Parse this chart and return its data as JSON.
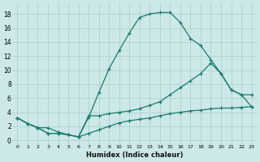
{
  "xlabel": "Humidex (Indice chaleur)",
  "bg_color": "#cce8e8",
  "grid_color": "#aacccc",
  "line_color": "#1a7a6e",
  "xlim": [
    -0.5,
    23.5
  ],
  "ylim": [
    -0.5,
    19.5
  ],
  "xticks": [
    0,
    1,
    2,
    3,
    4,
    5,
    6,
    7,
    8,
    9,
    10,
    11,
    12,
    13,
    14,
    15,
    16,
    17,
    18,
    19,
    20,
    21,
    22,
    23
  ],
  "yticks": [
    0,
    2,
    4,
    6,
    8,
    10,
    12,
    14,
    16,
    18
  ],
  "s1_x": [
    0,
    1,
    2,
    3,
    4,
    5,
    6,
    7,
    8,
    9,
    10,
    11,
    12,
    13,
    14,
    15,
    16,
    17,
    18,
    19,
    20,
    21,
    22,
    23
  ],
  "s1_y": [
    3.2,
    2.4,
    1.8,
    1.8,
    1.2,
    0.8,
    0.5,
    3.3,
    6.8,
    10.2,
    12.8,
    15.3,
    17.5,
    18.0,
    18.2,
    18.2,
    16.8,
    14.5,
    13.5,
    11.5,
    9.5,
    7.2,
    6.5,
    4.8
  ],
  "s2_x": [
    0,
    1,
    2,
    3,
    4,
    5,
    6,
    7,
    8,
    9,
    10,
    11,
    12,
    13,
    14,
    15,
    16,
    17,
    18,
    19,
    20,
    21,
    22,
    23
  ],
  "s2_y": [
    3.2,
    2.4,
    1.8,
    1.0,
    1.0,
    0.8,
    0.5,
    3.5,
    3.5,
    3.8,
    4.0,
    4.2,
    4.5,
    5.0,
    5.5,
    6.5,
    7.5,
    8.5,
    9.5,
    11.0,
    9.5,
    7.2,
    6.5,
    6.5
  ],
  "s3_x": [
    0,
    1,
    2,
    3,
    4,
    5,
    6,
    7,
    8,
    9,
    10,
    11,
    12,
    13,
    14,
    15,
    16,
    17,
    18,
    19,
    20,
    21,
    22,
    23
  ],
  "s3_y": [
    3.2,
    2.4,
    1.8,
    1.0,
    1.0,
    0.8,
    0.5,
    1.0,
    1.5,
    2.0,
    2.5,
    2.8,
    3.0,
    3.2,
    3.5,
    3.8,
    4.0,
    4.2,
    4.3,
    4.5,
    4.6,
    4.6,
    4.7,
    4.8
  ]
}
